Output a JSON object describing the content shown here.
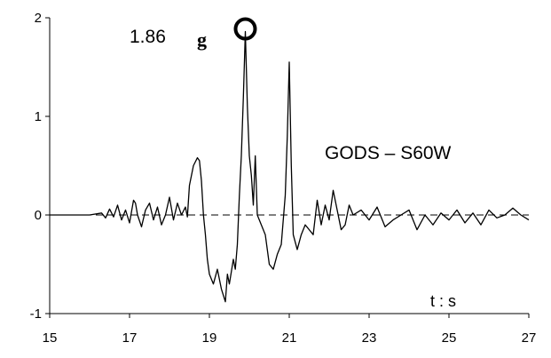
{
  "chart_data": {
    "type": "line",
    "title": "GODS – S60W",
    "xlabel": "t : s",
    "ylabel": "",
    "xlim": [
      15,
      27
    ],
    "ylim": [
      -1,
      2
    ],
    "x_ticks": [
      "15",
      "17",
      "19",
      "21",
      "23",
      "25",
      "27"
    ],
    "y_ticks": [
      "-1",
      "0",
      "1",
      "2"
    ],
    "grid": false,
    "zero_line": "dashed",
    "annotation": {
      "value_text": "1.86",
      "unit_text": "g",
      "peak": {
        "x": 19.9,
        "y": 1.86
      },
      "marker": "circle"
    },
    "series": [
      {
        "x": [
          15.0,
          16.0,
          16.3,
          16.4,
          16.5,
          16.6,
          16.7,
          16.8,
          16.9,
          17.0,
          17.1,
          17.15,
          17.2,
          17.3,
          17.4,
          17.5,
          17.6,
          17.7,
          17.8,
          17.9,
          18.0,
          18.1,
          18.2,
          18.3,
          18.4,
          18.45,
          18.5,
          18.6,
          18.7,
          18.75,
          18.8,
          18.85,
          18.9,
          18.95,
          19.0,
          19.1,
          19.2,
          19.3,
          19.4,
          19.45,
          19.5,
          19.6,
          19.65,
          19.7,
          19.75,
          19.8,
          19.85,
          19.9,
          19.95,
          20.0,
          20.05,
          20.1,
          20.15,
          20.2,
          20.3,
          20.4,
          20.5,
          20.6,
          20.7,
          20.8,
          20.9,
          20.95,
          21.0,
          21.05,
          21.1,
          21.2,
          21.3,
          21.4,
          21.5,
          21.6,
          21.7,
          21.8,
          21.9,
          22.0,
          22.1,
          22.2,
          22.3,
          22.4,
          22.5,
          22.6,
          22.8,
          23.0,
          23.2,
          23.4,
          23.6,
          23.8,
          24.0,
          24.2,
          24.4,
          24.6,
          24.8,
          25.0,
          25.2,
          25.4,
          25.6,
          25.8,
          26.0,
          26.2,
          26.4,
          26.6,
          26.8,
          27.0
        ],
        "y": [
          0.0,
          0.0,
          0.02,
          -0.03,
          0.06,
          -0.02,
          0.1,
          -0.05,
          0.05,
          -0.08,
          0.15,
          0.12,
          0.0,
          -0.12,
          0.05,
          0.12,
          -0.05,
          0.08,
          -0.1,
          0.0,
          0.18,
          -0.05,
          0.12,
          0.0,
          0.08,
          -0.02,
          0.3,
          0.5,
          0.58,
          0.55,
          0.35,
          0.0,
          -0.2,
          -0.45,
          -0.6,
          -0.7,
          -0.55,
          -0.75,
          -0.88,
          -0.6,
          -0.7,
          -0.45,
          -0.55,
          -0.3,
          0.2,
          0.6,
          1.2,
          1.86,
          1.1,
          0.6,
          0.4,
          0.1,
          0.6,
          0.0,
          -0.1,
          -0.2,
          -0.5,
          -0.55,
          -0.4,
          -0.3,
          0.2,
          0.8,
          1.55,
          0.5,
          -0.2,
          -0.35,
          -0.2,
          -0.1,
          -0.15,
          -0.2,
          0.15,
          -0.1,
          0.1,
          -0.05,
          0.25,
          0.05,
          -0.15,
          -0.1,
          0.1,
          0.0,
          0.05,
          -0.05,
          0.08,
          -0.12,
          -0.05,
          0.0,
          0.05,
          -0.15,
          0.0,
          -0.1,
          0.02,
          -0.05,
          0.05,
          -0.08,
          0.02,
          -0.1,
          0.05,
          -0.03,
          0.0,
          0.07,
          0.0,
          -0.05
        ]
      }
    ],
    "colors": {
      "line": "#000000",
      "axis": "#000000",
      "marker": "#000000"
    }
  }
}
